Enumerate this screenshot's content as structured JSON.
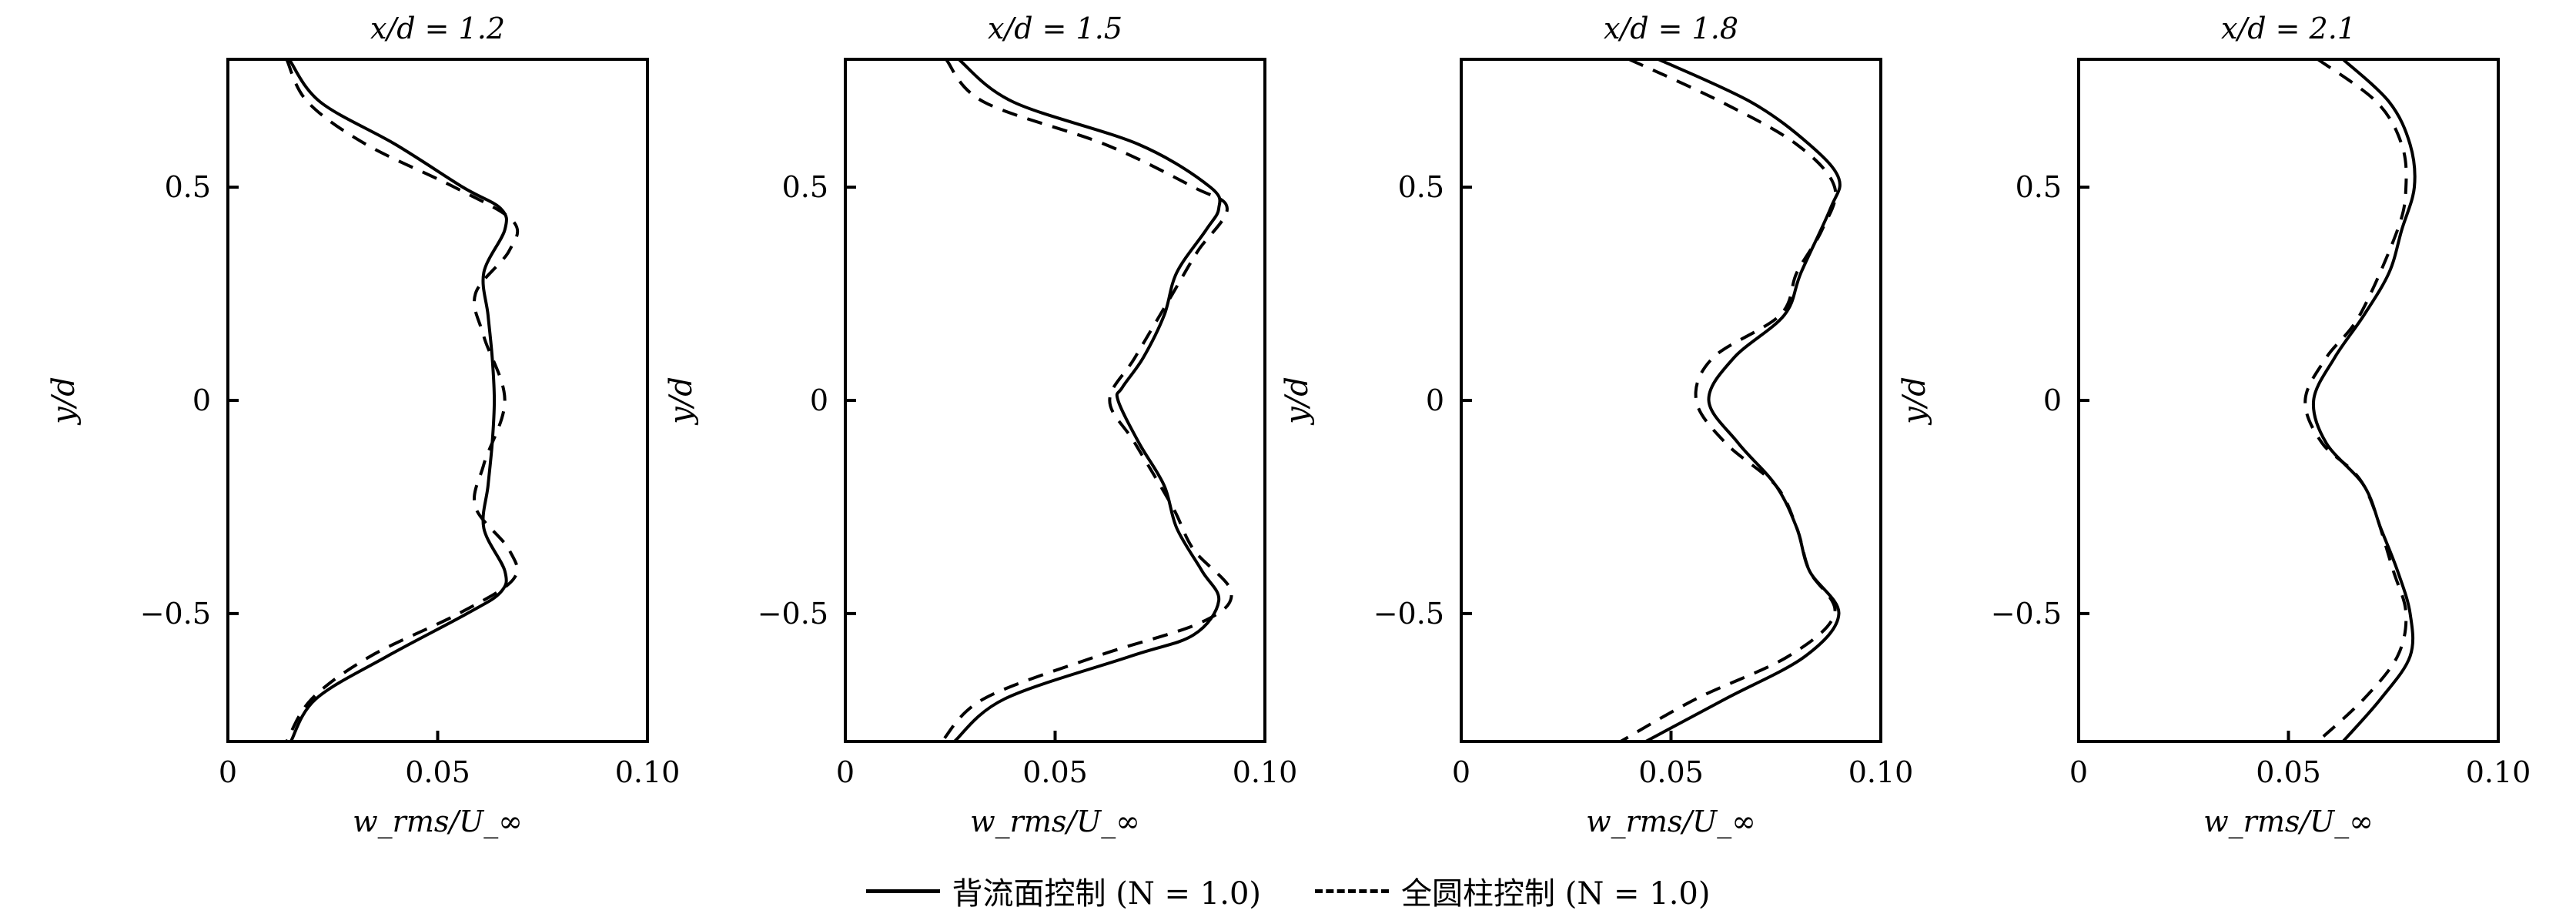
{
  "chart_data": [
    {
      "type": "line",
      "title": "x/d = 1.2",
      "xlabel": "w_rms/U_∞",
      "ylabel": "y/d",
      "xlim": [
        0,
        0.1
      ],
      "ylim": [
        -0.8,
        0.8
      ],
      "xticks": [
        "0",
        "0.05",
        "0.10"
      ],
      "yticks": [
        "0.5",
        "0",
        "−0.5"
      ],
      "grid": false,
      "series": [
        {
          "name": "背流面控制 (N = 1.0)",
          "style": "solid",
          "points": [
            [
              0.0146,
              0.8
            ],
            [
              0.022,
              0.7
            ],
            [
              0.04,
              0.6
            ],
            [
              0.056,
              0.5
            ],
            [
              0.065,
              0.45
            ],
            [
              0.066,
              0.4
            ],
            [
              0.061,
              0.3
            ],
            [
              0.062,
              0.2
            ],
            [
              0.063,
              0.1
            ],
            [
              0.0635,
              0
            ],
            [
              0.063,
              -0.1
            ],
            [
              0.062,
              -0.2
            ],
            [
              0.061,
              -0.3
            ],
            [
              0.066,
              -0.4
            ],
            [
              0.065,
              -0.45
            ],
            [
              0.057,
              -0.5
            ],
            [
              0.038,
              -0.6
            ],
            [
              0.021,
              -0.7
            ],
            [
              0.015,
              -0.8
            ]
          ]
        },
        {
          "name": "全圆柱控制 (N = 1.0)",
          "style": "dashed",
          "points": [
            [
              0.014,
              0.8
            ],
            [
              0.019,
              0.7
            ],
            [
              0.033,
              0.6
            ],
            [
              0.054,
              0.5
            ],
            [
              0.068,
              0.42
            ],
            [
              0.067,
              0.35
            ],
            [
              0.059,
              0.25
            ],
            [
              0.061,
              0.15
            ],
            [
              0.066,
              0
            ],
            [
              0.061,
              -0.15
            ],
            [
              0.059,
              -0.25
            ],
            [
              0.067,
              -0.35
            ],
            [
              0.068,
              -0.42
            ],
            [
              0.055,
              -0.5
            ],
            [
              0.034,
              -0.6
            ],
            [
              0.02,
              -0.7
            ],
            [
              0.014,
              -0.8
            ]
          ]
        }
      ]
    },
    {
      "type": "line",
      "title": "x/d = 1.5",
      "xlabel": "w_rms/U_∞",
      "ylabel": "y/d",
      "xlim": [
        0,
        0.1
      ],
      "ylim": [
        -0.8,
        0.8
      ],
      "xticks": [
        "0",
        "0.05",
        "0.10"
      ],
      "yticks": [
        "0.5",
        "0",
        "−0.5"
      ],
      "grid": false,
      "series": [
        {
          "name": "背流面控制 (N = 1.0)",
          "style": "solid",
          "points": [
            [
              0.027,
              0.8
            ],
            [
              0.04,
              0.7
            ],
            [
              0.07,
              0.6
            ],
            [
              0.087,
              0.5
            ],
            [
              0.089,
              0.45
            ],
            [
              0.086,
              0.4
            ],
            [
              0.079,
              0.3
            ],
            [
              0.076,
              0.2
            ],
            [
              0.071,
              0.1
            ],
            [
              0.066,
              0.03
            ],
            [
              0.065,
              0
            ],
            [
              0.07,
              -0.1
            ],
            [
              0.076,
              -0.2
            ],
            [
              0.079,
              -0.3
            ],
            [
              0.085,
              -0.4
            ],
            [
              0.089,
              -0.47
            ],
            [
              0.083,
              -0.55
            ],
            [
              0.068,
              -0.6
            ],
            [
              0.038,
              -0.7
            ],
            [
              0.026,
              -0.8
            ]
          ]
        },
        {
          "name": "全圆柱控制 (N = 1.0)",
          "style": "dashed",
          "points": [
            [
              0.024,
              0.8
            ],
            [
              0.033,
              0.7
            ],
            [
              0.062,
              0.6
            ],
            [
              0.083,
              0.5
            ],
            [
              0.091,
              0.45
            ],
            [
              0.084,
              0.35
            ],
            [
              0.078,
              0.25
            ],
            [
              0.069,
              0.1
            ],
            [
              0.063,
              0
            ],
            [
              0.069,
              -0.1
            ],
            [
              0.078,
              -0.25
            ],
            [
              0.083,
              -0.35
            ],
            [
              0.092,
              -0.45
            ],
            [
              0.085,
              -0.52
            ],
            [
              0.06,
              -0.6
            ],
            [
              0.033,
              -0.7
            ],
            [
              0.023,
              -0.8
            ]
          ]
        }
      ]
    },
    {
      "type": "line",
      "title": "x/d = 1.8",
      "xlabel": "w_rms/U_∞",
      "ylabel": "y/d",
      "xlim": [
        0,
        0.1
      ],
      "ylim": [
        -0.8,
        0.8
      ],
      "xticks": [
        "0",
        "0.05",
        "0.10"
      ],
      "yticks": [
        "0.5",
        "0",
        "−0.5"
      ],
      "grid": false,
      "series": [
        {
          "name": "背流面控制 (N = 1.0)",
          "style": "solid",
          "points": [
            [
              0.047,
              0.8
            ],
            [
              0.069,
              0.7
            ],
            [
              0.083,
              0.6
            ],
            [
              0.09,
              0.52
            ],
            [
              0.088,
              0.45
            ],
            [
              0.081,
              0.3
            ],
            [
              0.077,
              0.2
            ],
            [
              0.065,
              0.1
            ],
            [
              0.059,
              0
            ],
            [
              0.066,
              -0.1
            ],
            [
              0.075,
              -0.2
            ],
            [
              0.08,
              -0.3
            ],
            [
              0.083,
              -0.4
            ],
            [
              0.09,
              -0.5
            ],
            [
              0.082,
              -0.6
            ],
            [
              0.063,
              -0.7
            ],
            [
              0.044,
              -0.8
            ]
          ]
        },
        {
          "name": "全圆柱控制 (N = 1.0)",
          "style": "dashed",
          "points": [
            [
              0.04,
              0.8
            ],
            [
              0.062,
              0.7
            ],
            [
              0.08,
              0.6
            ],
            [
              0.089,
              0.5
            ],
            [
              0.086,
              0.4
            ],
            [
              0.08,
              0.3
            ],
            [
              0.076,
              0.2
            ],
            [
              0.06,
              0.1
            ],
            [
              0.056,
              0
            ],
            [
              0.063,
              -0.1
            ],
            [
              0.075,
              -0.2
            ],
            [
              0.08,
              -0.3
            ],
            [
              0.083,
              -0.4
            ],
            [
              0.089,
              -0.5
            ],
            [
              0.078,
              -0.6
            ],
            [
              0.056,
              -0.7
            ],
            [
              0.038,
              -0.8
            ]
          ]
        }
      ]
    },
    {
      "type": "line",
      "title": "x/d = 2.1",
      "xlabel": "w_rms/U_∞",
      "ylabel": "y/d",
      "xlim": [
        0,
        0.1
      ],
      "ylim": [
        -0.8,
        0.8
      ],
      "xticks": [
        "0",
        "0.05",
        "0.10"
      ],
      "yticks": [
        "0.5",
        "0",
        "−0.5"
      ],
      "grid": false,
      "series": [
        {
          "name": "背流面控制 (N = 1.0)",
          "style": "solid",
          "points": [
            [
              0.063,
              0.8
            ],
            [
              0.074,
              0.7
            ],
            [
              0.079,
              0.6
            ],
            [
              0.08,
              0.5
            ],
            [
              0.077,
              0.4
            ],
            [
              0.074,
              0.3
            ],
            [
              0.068,
              0.2
            ],
            [
              0.061,
              0.1
            ],
            [
              0.056,
              0
            ],
            [
              0.059,
              -0.1
            ],
            [
              0.068,
              -0.2
            ],
            [
              0.072,
              -0.3
            ],
            [
              0.076,
              -0.4
            ],
            [
              0.079,
              -0.5
            ],
            [
              0.079,
              -0.6
            ],
            [
              0.072,
              -0.7
            ],
            [
              0.063,
              -0.8
            ]
          ]
        },
        {
          "name": "全圆柱控制 (N = 1.0)",
          "style": "dashed",
          "points": [
            [
              0.057,
              0.8
            ],
            [
              0.071,
              0.7
            ],
            [
              0.077,
              0.6
            ],
            [
              0.078,
              0.5
            ],
            [
              0.076,
              0.4
            ],
            [
              0.067,
              0.2
            ],
            [
              0.059,
              0.1
            ],
            [
              0.054,
              0
            ],
            [
              0.058,
              -0.1
            ],
            [
              0.068,
              -0.2
            ],
            [
              0.075,
              -0.4
            ],
            [
              0.078,
              -0.5
            ],
            [
              0.076,
              -0.6
            ],
            [
              0.068,
              -0.7
            ],
            [
              0.057,
              -0.8
            ]
          ]
        }
      ]
    }
  ],
  "axis_label_parts": {
    "x_main": "w",
    "x_sub": "rms",
    "x_rest": "/U",
    "x_inf": "∞",
    "y": "y/d"
  },
  "legend": {
    "placement": "bottom-center",
    "items": [
      {
        "label": "背流面控制 (N = 1.0)",
        "style": "solid"
      },
      {
        "label": "全圆柱控制 (N = 1.0)",
        "style": "dashed"
      }
    ]
  }
}
